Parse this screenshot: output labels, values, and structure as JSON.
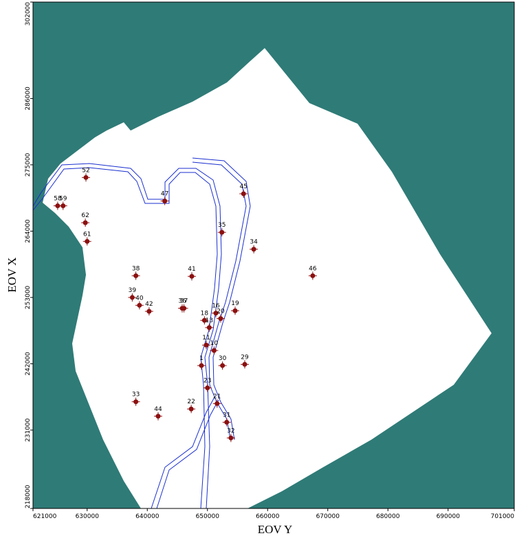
{
  "chart_data": {
    "type": "scatter",
    "xlabel": "EOV Y",
    "ylabel": "EOV X",
    "xlim": [
      621000,
      701000
    ],
    "ylim": [
      218000,
      302000
    ],
    "xticks": [
      621000,
      630000,
      640000,
      650000,
      660000,
      670000,
      680000,
      690000,
      701000
    ],
    "yticks": [
      218000,
      231000,
      242000,
      253000,
      264000,
      275000,
      286000,
      302000
    ],
    "series": [
      {
        "color": "#8b1010",
        "labels": [
          "58",
          "59",
          "52",
          "62",
          "61",
          "47",
          "45",
          "35",
          "34",
          "46",
          "38",
          "41",
          "39",
          "40",
          "42",
          "36",
          "37",
          "18",
          "16",
          "19",
          "20",
          "13",
          "11",
          "10",
          "1",
          "29",
          "30",
          "23",
          "21",
          "22",
          "33",
          "44",
          "31",
          "32"
        ],
        "x": [
          625100,
          626000,
          629800,
          629700,
          630000,
          642900,
          656000,
          652400,
          657700,
          667500,
          638100,
          647400,
          637500,
          638700,
          640300,
          645800,
          646100,
          649500,
          651400,
          654600,
          652200,
          650300,
          649800,
          651100,
          649000,
          656200,
          652500,
          650000,
          651600,
          647300,
          638100,
          641800,
          653200,
          653900
        ],
        "values": [
          268200,
          268200,
          272900,
          265400,
          262300,
          269000,
          270200,
          263800,
          261000,
          256600,
          256600,
          256500,
          253000,
          251700,
          250700,
          251200,
          251200,
          249200,
          250400,
          250800,
          249500,
          248000,
          245100,
          244200,
          241700,
          241900,
          241700,
          238000,
          235400,
          234500,
          235700,
          233300,
          232300,
          229700
        ]
      }
    ]
  }
}
